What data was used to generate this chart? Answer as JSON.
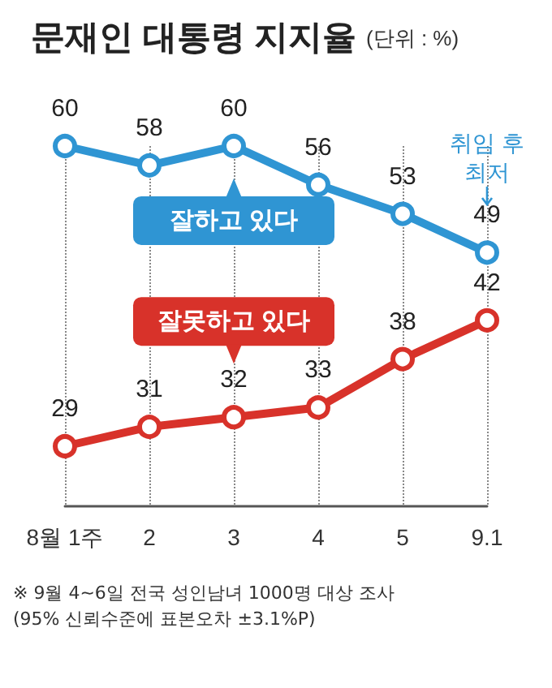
{
  "chart_data": {
    "type": "line",
    "title": "문재인 대통령 지지율",
    "subtitle": "(단위 : %)",
    "categories": [
      "8월 1주",
      "2",
      "3",
      "4",
      "5",
      "9.1"
    ],
    "series": [
      {
        "name": "잘하고 있다",
        "color": "#2f95d3",
        "values": [
          60,
          58,
          60,
          56,
          53,
          49
        ]
      },
      {
        "name": "잘못하고 있다",
        "color": "#d8322a",
        "values": [
          29,
          31,
          32,
          33,
          38,
          42
        ]
      }
    ],
    "annotations": [
      {
        "text": "취임 후 최저",
        "x": "9.1",
        "y": 49
      },
      "※ 9월 4~6일 전국 성인남녀 1000명 대상 조사",
      "(95% 신뢰수준에 표본오차 ±3.1%P)"
    ],
    "data_labels": true,
    "grid": "x",
    "marker": "circle"
  }
}
